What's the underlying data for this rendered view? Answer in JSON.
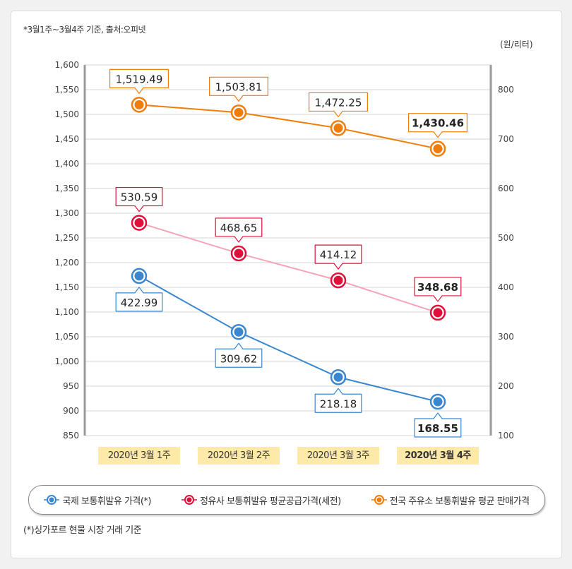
{
  "note": "*3월1주~3월4주 기준, 출처:오피넷",
  "footnote": "(*)싱가포르 현물 시장 거래 기준",
  "chart_data": {
    "type": "line",
    "categories": [
      "2020년 3월 1주",
      "2020년 3월 2주",
      "2020년 3월 3주",
      "2020년 3월 4주"
    ],
    "y_left": {
      "range": [
        850,
        1600
      ],
      "ticks": [
        850,
        900,
        950,
        1000,
        1050,
        1100,
        1150,
        1200,
        1250,
        1300,
        1350,
        1400,
        1450,
        1500,
        1550,
        1600
      ]
    },
    "y_right": {
      "label": "(원/리터)",
      "range": [
        100,
        850
      ],
      "ticks": [
        100,
        200,
        300,
        400,
        500,
        600,
        700,
        800
      ]
    },
    "grid": true,
    "legend_position": "bottom",
    "series": [
      {
        "name": "국제 보통휘발유 가격(*)",
        "axis": "right",
        "color": "#3a87d0",
        "values": [
          422.99,
          309.62,
          218.18,
          168.55
        ],
        "labels": [
          "422.99",
          "309.62",
          "218.18",
          "168.55"
        ],
        "label_pos": "below"
      },
      {
        "name": "정유사 보통휘발유 평균공급가격(세전)",
        "axis": "right",
        "color": "#e0103a",
        "line_color": "#f4a6b4",
        "values": [
          530.59,
          468.65,
          414.12,
          348.68
        ],
        "labels": [
          "530.59",
          "468.65",
          "414.12",
          "348.68"
        ],
        "label_pos": "above"
      },
      {
        "name": "전국 주유소 보통휘발유 평균 판매가격",
        "axis": "left",
        "color": "#f07d0a",
        "values": [
          1519.49,
          1503.81,
          1472.25,
          1430.46
        ],
        "labels": [
          "1,519.49",
          "1,503.81",
          "1,472.25",
          "1,430.46"
        ],
        "label_pos": "above"
      }
    ]
  }
}
